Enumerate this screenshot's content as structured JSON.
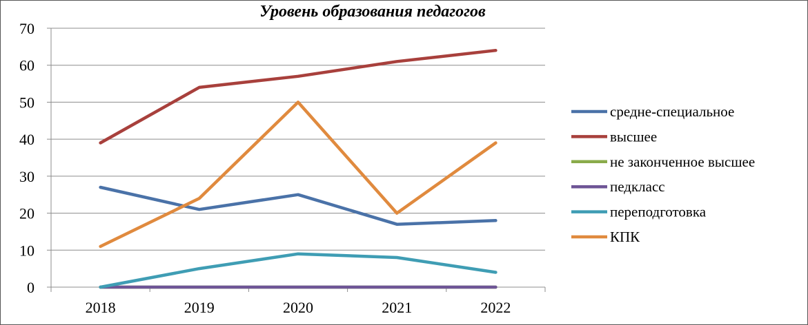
{
  "chart_data": {
    "type": "line",
    "title": "Уровень образования педагогов",
    "xlabel": "",
    "ylabel": "",
    "categories": [
      "2018",
      "2019",
      "2020",
      "2021",
      "2022"
    ],
    "ylim": [
      0,
      70
    ],
    "yticks": [
      0,
      10,
      20,
      30,
      40,
      50,
      60,
      70
    ],
    "grid": true,
    "legend_position": "right",
    "series": [
      {
        "name": "средне-специальное",
        "color": "#4a72a8",
        "values": [
          27,
          21,
          25,
          17,
          18
        ]
      },
      {
        "name": "высшее",
        "color": "#a8403c",
        "values": [
          39,
          54,
          57,
          61,
          64
        ]
      },
      {
        "name": "не законченное высшее",
        "color": "#8aab4a",
        "values": [
          0,
          0,
          0,
          0,
          0
        ]
      },
      {
        "name": "педкласс",
        "color": "#6e5596",
        "values": [
          0,
          0,
          0,
          0,
          0
        ]
      },
      {
        "name": "переподготовка",
        "color": "#3f9db4",
        "values": [
          0,
          5,
          9,
          8,
          4
        ]
      },
      {
        "name": "КПК",
        "color": "#e08a3e",
        "values": [
          11,
          24,
          50,
          20,
          39
        ]
      }
    ]
  }
}
